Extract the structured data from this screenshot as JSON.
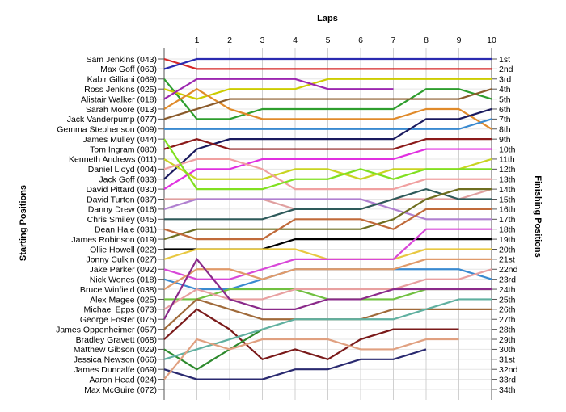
{
  "chart_data": {
    "type": "line",
    "title": "Laps",
    "ylabel_left": "Starting Positions",
    "ylabel_right": "Finishing Positions",
    "x": [
      0,
      1,
      2,
      3,
      4,
      5,
      6,
      7,
      8,
      9,
      10
    ],
    "x_tick_labels": [
      "1",
      "2",
      "3",
      "4",
      "5",
      "6",
      "7",
      "8",
      "9",
      "10"
    ],
    "finishing_position_labels": [
      "1st",
      "2nd",
      "3rd",
      "4th",
      "5th",
      "6th",
      "7th",
      "8th",
      "9th",
      "10th",
      "11th",
      "12th",
      "13th",
      "14th",
      "15th",
      "16th",
      "17th",
      "18th",
      "19th",
      "20th",
      "21st",
      "22nd",
      "23rd",
      "24th",
      "25th",
      "26th",
      "27th",
      "28th",
      "29th",
      "30th",
      "31st",
      "32nd",
      "33rd",
      "34th"
    ],
    "grid": true,
    "series": [
      {
        "name": "Sam Jenkins (043)",
        "color": "#d62828",
        "positions": [
          1,
          2,
          2,
          2,
          2,
          2,
          2,
          2,
          2,
          2,
          2
        ]
      },
      {
        "name": "Max Goff (063)",
        "color": "#2a2ab0",
        "positions": [
          2,
          1,
          1,
          1,
          1,
          1,
          1,
          1,
          1,
          1,
          1
        ]
      },
      {
        "name": "Kabir Gilliani (069)",
        "color": "#2e9e2e",
        "positions": [
          3,
          7,
          7,
          6,
          6,
          6,
          6,
          6,
          4,
          4,
          5
        ]
      },
      {
        "name": "Ross Jenkins (025)",
        "color": "#cccc00",
        "positions": [
          4,
          5,
          4,
          4,
          4,
          3,
          3,
          3,
          3,
          3,
          3
        ]
      },
      {
        "name": "Alistair Walker (018)",
        "color": "#9c27b0",
        "positions": [
          5,
          3,
          3,
          3,
          3,
          4,
          4,
          4
        ]
      },
      {
        "name": "Sarah Moore (013)",
        "color": "#e08a2a",
        "positions": [
          6,
          4,
          6,
          7,
          7,
          7,
          7,
          7,
          6,
          6,
          8
        ]
      },
      {
        "name": "Jack Vanderpump (077)",
        "color": "#8a5a2a",
        "positions": [
          7,
          6,
          5,
          5,
          5,
          5,
          5,
          5,
          5,
          5,
          4
        ]
      },
      {
        "name": "Gemma Stephenson (009)",
        "color": "#3a8ad0",
        "positions": [
          8,
          8,
          8,
          8,
          8,
          8,
          8,
          8,
          8,
          8,
          7
        ]
      },
      {
        "name": "Jack Goff (033)",
        "color": "#1a1a5e",
        "positions": [
          13,
          10,
          9,
          9,
          9,
          9,
          9,
          9,
          7,
          7,
          6
        ]
      },
      {
        "name": "Tom Ingram (080)",
        "color": "#8b1a1a",
        "positions": [
          10,
          9,
          10,
          10,
          10,
          10,
          10,
          10,
          9,
          9,
          9
        ]
      },
      {
        "name": "David Pittard (030)",
        "color": "#e030e0",
        "positions": [
          14,
          12,
          12,
          11,
          11,
          11,
          11,
          11,
          10,
          10,
          10
        ]
      },
      {
        "name": "Kenneth Andrews (011)",
        "color": "#c8d420",
        "positions": [
          11,
          13,
          13,
          13,
          12,
          12,
          13,
          12,
          12,
          12,
          11
        ]
      },
      {
        "name": "Daniel Lloyd (004)",
        "color": "#f0a0a0",
        "positions": [
          12,
          11,
          11,
          12,
          14,
          14,
          14,
          14,
          13,
          13,
          13
        ]
      },
      {
        "name": "James Mulley (044)",
        "color": "#80e020",
        "positions": [
          9,
          14,
          14,
          14,
          13,
          13,
          12,
          13,
          12,
          12,
          12
        ]
      },
      {
        "name": "David Turton (037)",
        "color": "#e0a0a0",
        "positions": [
          15,
          15,
          15,
          15,
          16,
          16,
          16,
          15,
          15,
          15,
          14
        ]
      },
      {
        "name": "Danny Drew (016)",
        "color": "#b080d0",
        "positions": [
          16,
          15,
          15,
          15,
          15,
          15,
          15,
          16,
          17,
          17,
          17
        ]
      },
      {
        "name": "Chris Smiley (045)",
        "color": "#2e5a5a",
        "positions": [
          17,
          17,
          17,
          17,
          16,
          16,
          16,
          15,
          14,
          15,
          15
        ]
      },
      {
        "name": "James Robinson (019)",
        "color": "#6e6e20",
        "positions": [
          19,
          18,
          18,
          18,
          18,
          18,
          18,
          17,
          15,
          14,
          14
        ]
      },
      {
        "name": "Dean Hale (031)",
        "color": "#c06a3a",
        "positions": [
          18,
          19,
          19,
          19,
          17,
          17,
          17,
          18,
          16,
          16,
          16
        ]
      },
      {
        "name": "Ollie Howell (022)",
        "color": "#000000",
        "positions": [
          20,
          20,
          20,
          20,
          19,
          19,
          19,
          19,
          19,
          19,
          19
        ]
      },
      {
        "name": "Jonny Culkin (027)",
        "color": "#e8c840",
        "positions": [
          21,
          20,
          20,
          20,
          20,
          21,
          21,
          21,
          20,
          20,
          20
        ]
      },
      {
        "name": "Jake Parker (092)",
        "color": "#d848d8",
        "positions": [
          22,
          23,
          23,
          22,
          21,
          21,
          21,
          21,
          18,
          18,
          18
        ]
      },
      {
        "name": "Nick Wones (018)",
        "color": "#3a8ad0",
        "positions": [
          23,
          24,
          24,
          23,
          22,
          22,
          22,
          22,
          22,
          22,
          23
        ]
      },
      {
        "name": "Bruce Winfield (038)",
        "color": "#e09a6a",
        "positions": [
          24,
          22,
          22,
          23,
          22,
          22,
          22,
          22,
          21,
          21,
          21
        ]
      },
      {
        "name": "Alex Magee (025)",
        "color": "#70c040",
        "positions": [
          25,
          25,
          24,
          24,
          24,
          25,
          25,
          25,
          24,
          24,
          24
        ]
      },
      {
        "name": "Michael Epps (073)",
        "color": "#e8a0a0",
        "positions": [
          26,
          24,
          25,
          25,
          24,
          24,
          24,
          24,
          23,
          23,
          22
        ]
      },
      {
        "name": "George Foster (075)",
        "color": "#8a2a8a",
        "positions": [
          27,
          21,
          25,
          26,
          26,
          25,
          25,
          24,
          24,
          24,
          24
        ]
      },
      {
        "name": "James Oppenheimer (057)",
        "color": "#a06a3a",
        "positions": [
          28,
          25,
          26,
          27,
          27,
          27,
          27,
          26,
          26,
          26,
          26
        ]
      },
      {
        "name": "Bradley Gravett (068)",
        "color": "#7a1a1a",
        "positions": [
          29,
          26,
          28,
          31,
          30,
          31,
          29,
          28,
          28,
          28
        ]
      },
      {
        "name": "Matthew Gibson (029)",
        "color": "#2e8a2e",
        "positions": [
          30,
          32,
          30,
          28
        ]
      },
      {
        "name": "Jessica Newson (066)",
        "color": "#60b0a0",
        "positions": [
          31,
          30,
          29,
          28,
          27,
          27,
          27,
          27,
          26,
          25,
          25
        ]
      },
      {
        "name": "James Duncalfe (069)",
        "color": "#2a2a70",
        "positions": [
          32,
          33,
          33,
          33,
          32,
          32,
          31,
          31,
          30
        ]
      },
      {
        "name": "Aaron Head (024)",
        "color": "#e0a080",
        "positions": [
          33,
          29,
          30,
          29,
          29,
          29,
          30,
          30,
          29,
          29
        ]
      },
      {
        "name": "Max McGuire (072)",
        "color": "#505050",
        "positions": [
          34
        ]
      }
    ]
  }
}
